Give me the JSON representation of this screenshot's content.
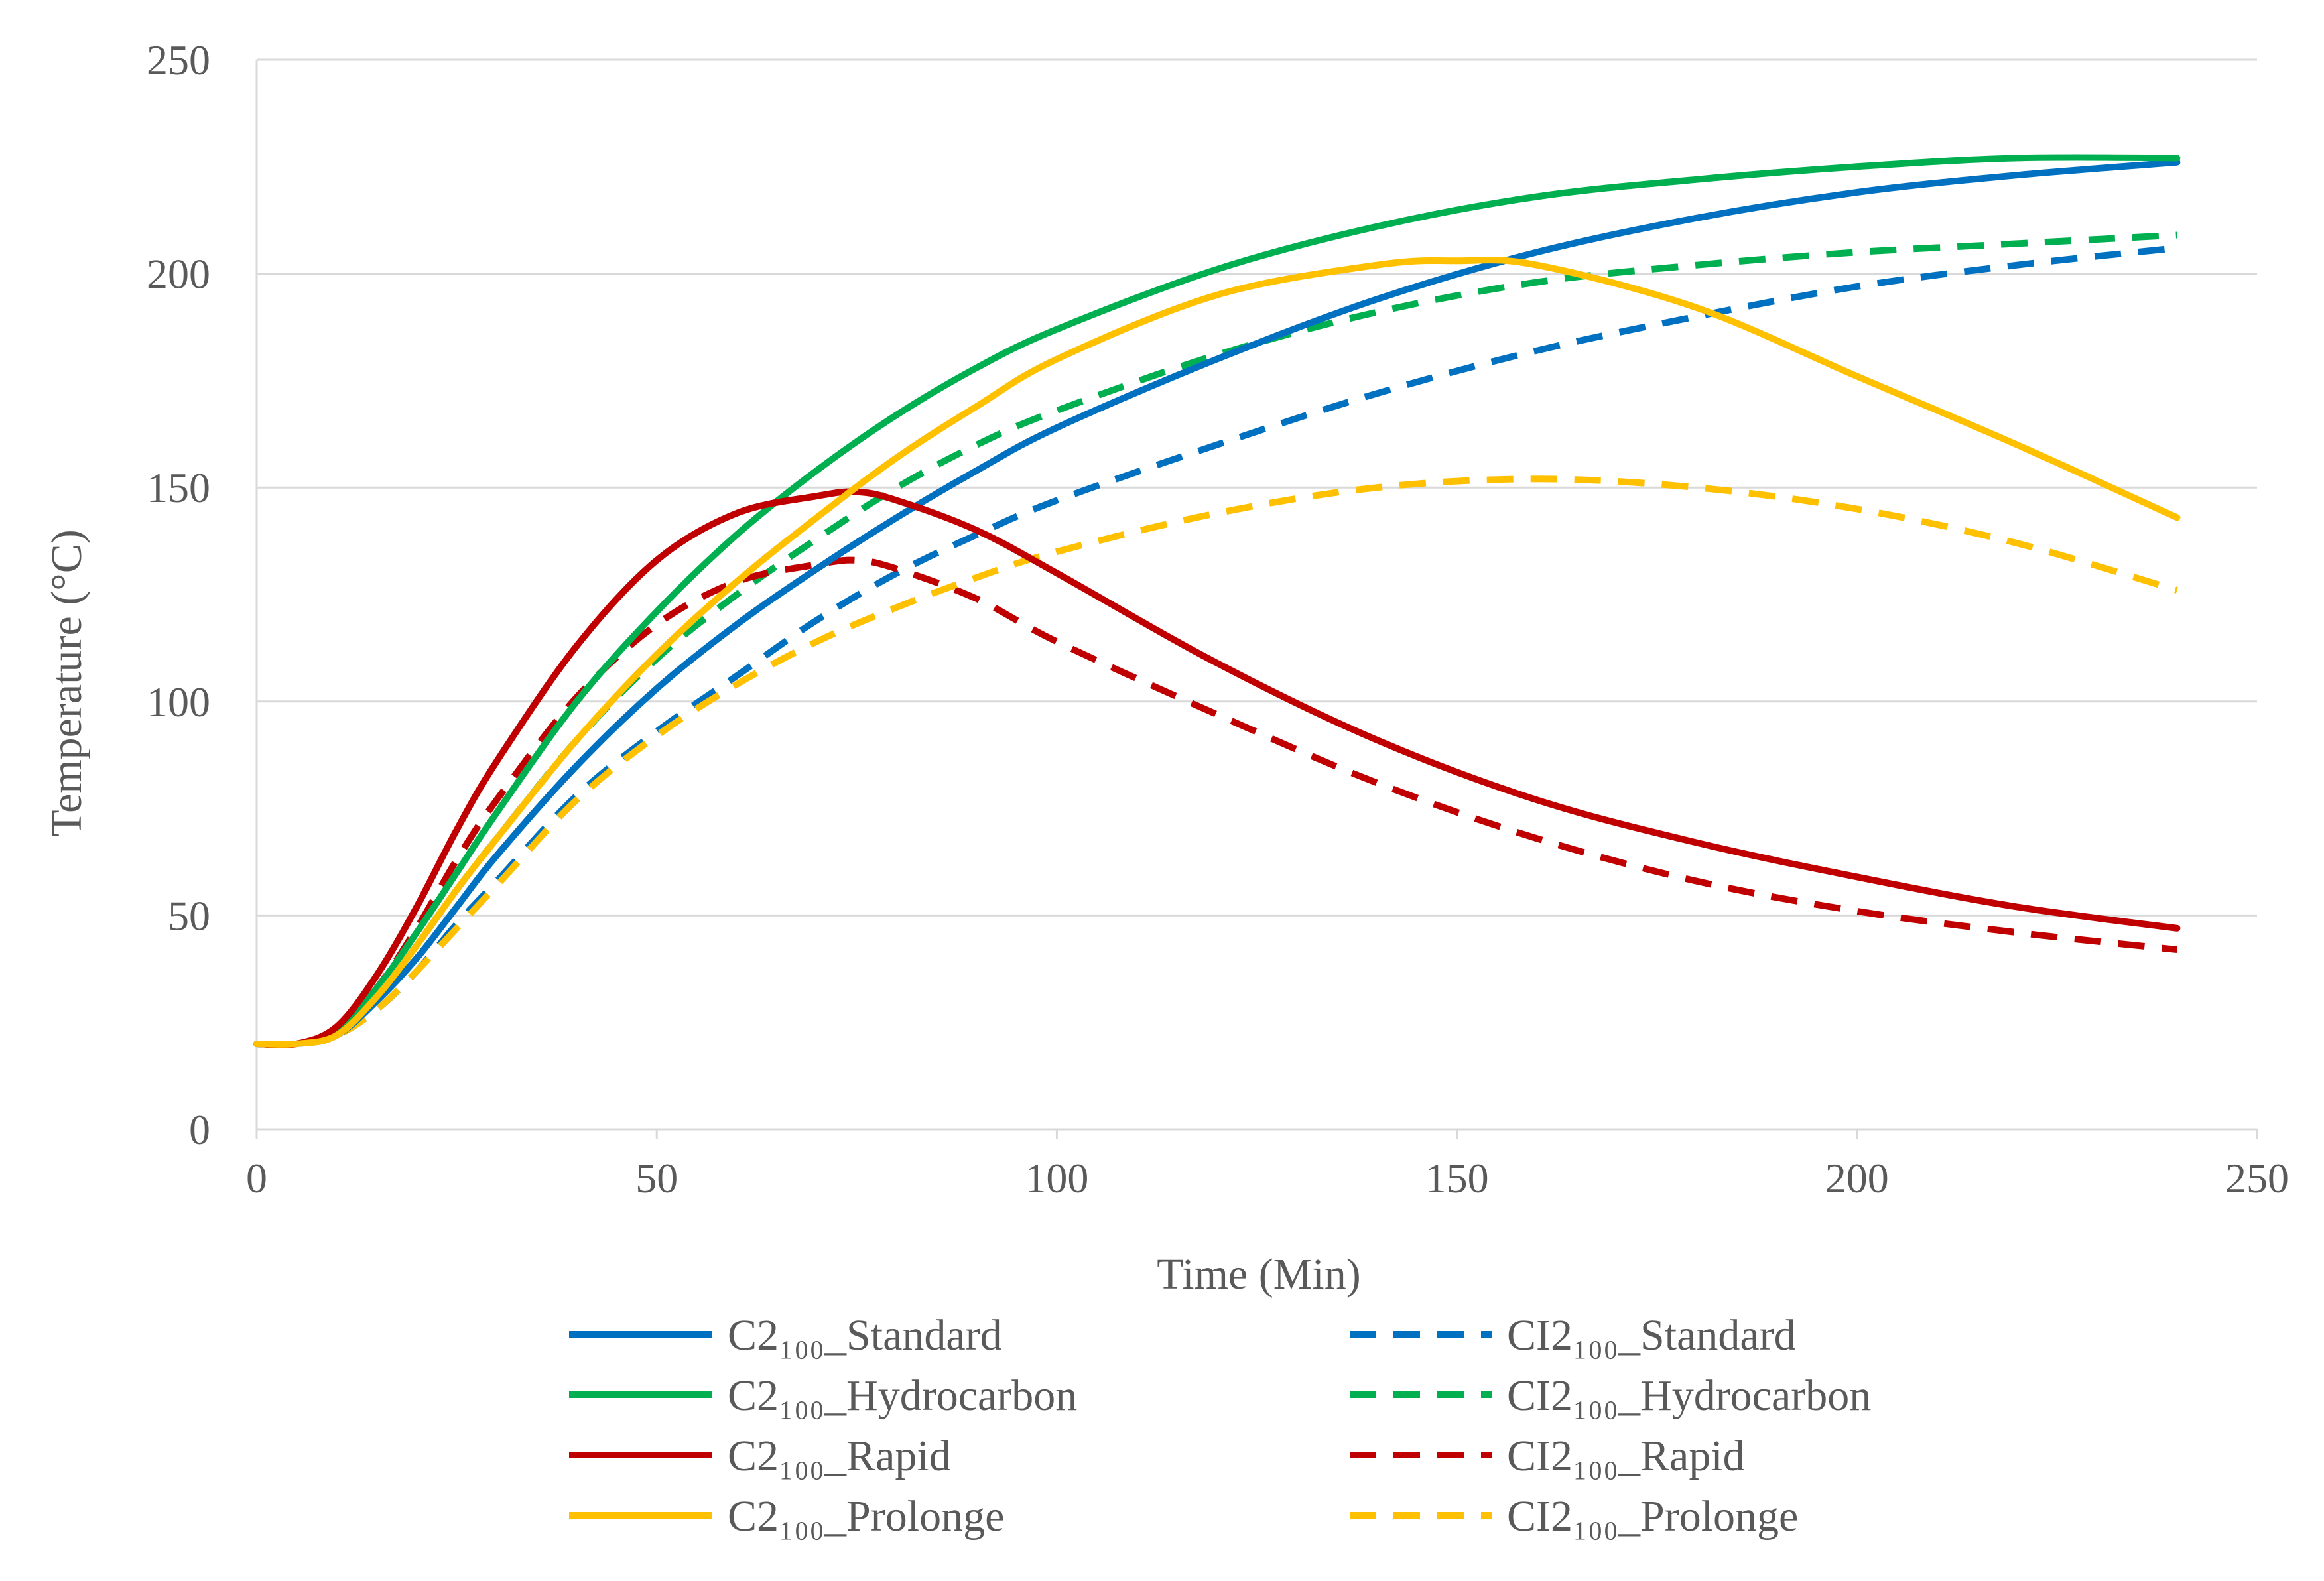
{
  "chart_data": {
    "type": "line",
    "title": "",
    "xlabel": "Time (Min)",
    "ylabel": "Temperature (°C)",
    "xlim": [
      0,
      250
    ],
    "ylim": [
      0,
      250
    ],
    "xticks": [
      "0",
      "50",
      "100",
      "150",
      "200",
      "250"
    ],
    "yticks": [
      "0",
      "50",
      "100",
      "150",
      "200",
      "250"
    ],
    "grid": "horizontal",
    "legend_position": "bottom",
    "series": [
      {
        "name": "C2₁₀₀_Standard",
        "color": "#0070C0",
        "dash": "solid",
        "x": [
          0,
          5,
          10,
          15,
          20,
          25,
          30,
          40,
          50,
          60,
          70,
          80,
          90,
          100,
          120,
          140,
          160,
          180,
          200,
          220,
          240
        ],
        "y": [
          20,
          20,
          22,
          30,
          40,
          52,
          64,
          85,
          103,
          118,
          131,
          143,
          154,
          164,
          180,
          194,
          205,
          213,
          219,
          223,
          226
        ]
      },
      {
        "name": "CI2₁₀₀_Standard",
        "color": "#0070C0",
        "dash": "dashed",
        "x": [
          0,
          5,
          10,
          15,
          20,
          25,
          30,
          40,
          50,
          60,
          70,
          80,
          90,
          100,
          120,
          140,
          160,
          180,
          200,
          220,
          240
        ],
        "y": [
          20,
          20,
          22,
          28,
          37,
          48,
          58,
          78,
          93,
          106,
          119,
          130,
          139,
          147,
          160,
          172,
          182,
          190,
          197,
          202,
          206
        ]
      },
      {
        "name": "C2₁₀₀_Hydrocarbon",
        "color": "#00B050",
        "dash": "solid",
        "x": [
          0,
          5,
          10,
          15,
          20,
          25,
          30,
          40,
          50,
          60,
          70,
          80,
          90,
          100,
          120,
          140,
          160,
          180,
          200,
          220,
          240
        ],
        "y": [
          20,
          20,
          23,
          33,
          46,
          60,
          74,
          100,
          121,
          139,
          154,
          167,
          178,
          187,
          201,
          211,
          218,
          222,
          225,
          227,
          227
        ]
      },
      {
        "name": "CI2₁₀₀_Hydrocarbon",
        "color": "#00B050",
        "dash": "dashed",
        "x": [
          0,
          5,
          10,
          15,
          20,
          25,
          30,
          40,
          50,
          60,
          70,
          80,
          90,
          100,
          120,
          140,
          160,
          180,
          200,
          220,
          240
        ],
        "y": [
          20,
          20,
          22,
          31,
          43,
          56,
          68,
          91,
          110,
          125,
          138,
          150,
          160,
          168,
          181,
          191,
          198,
          202,
          205,
          207,
          209
        ]
      },
      {
        "name": "C2₁₀₀_Rapid",
        "color": "#C00000",
        "dash": "solid",
        "x": [
          0,
          5,
          10,
          15,
          20,
          25,
          30,
          40,
          50,
          60,
          70,
          75,
          80,
          90,
          100,
          120,
          140,
          160,
          180,
          200,
          220,
          240
        ],
        "y": [
          20,
          20,
          24,
          36,
          52,
          70,
          86,
          113,
          133,
          144,
          148,
          149,
          147,
          140,
          130,
          109,
          91,
          77,
          67,
          59,
          52,
          47
        ]
      },
      {
        "name": "CI2₁₀₀_Rapid",
        "color": "#C00000",
        "dash": "dashed",
        "x": [
          0,
          5,
          10,
          15,
          20,
          25,
          30,
          40,
          50,
          60,
          70,
          75,
          80,
          90,
          100,
          120,
          140,
          160,
          180,
          200,
          220,
          240
        ],
        "y": [
          20,
          20,
          23,
          33,
          47,
          63,
          77,
          101,
          118,
          128,
          132,
          133,
          131,
          124,
          114,
          97,
          81,
          68,
          58,
          51,
          46,
          42
        ]
      },
      {
        "name": "C2₁₀₀_Prolonge",
        "color": "#FFC000",
        "dash": "solid",
        "x": [
          0,
          5,
          10,
          15,
          20,
          25,
          30,
          40,
          50,
          60,
          70,
          80,
          90,
          100,
          120,
          140,
          150,
          160,
          180,
          200,
          220,
          240
        ],
        "y": [
          20,
          20,
          22,
          31,
          43,
          56,
          68,
          91,
          111,
          128,
          143,
          157,
          169,
          180,
          195,
          202,
          203,
          202,
          192,
          176,
          160,
          143
        ]
      },
      {
        "name": "CI2₁₀₀_Prolonge",
        "color": "#FFC000",
        "dash": "dashed",
        "x": [
          0,
          5,
          10,
          15,
          20,
          25,
          30,
          40,
          50,
          60,
          70,
          80,
          90,
          100,
          120,
          140,
          160,
          180,
          200,
          220,
          240
        ],
        "y": [
          20,
          20,
          22,
          28,
          37,
          47,
          57,
          77,
          92,
          104,
          114,
          122,
          129,
          135,
          144,
          150,
          152,
          150,
          145,
          137,
          126
        ]
      }
    ]
  }
}
